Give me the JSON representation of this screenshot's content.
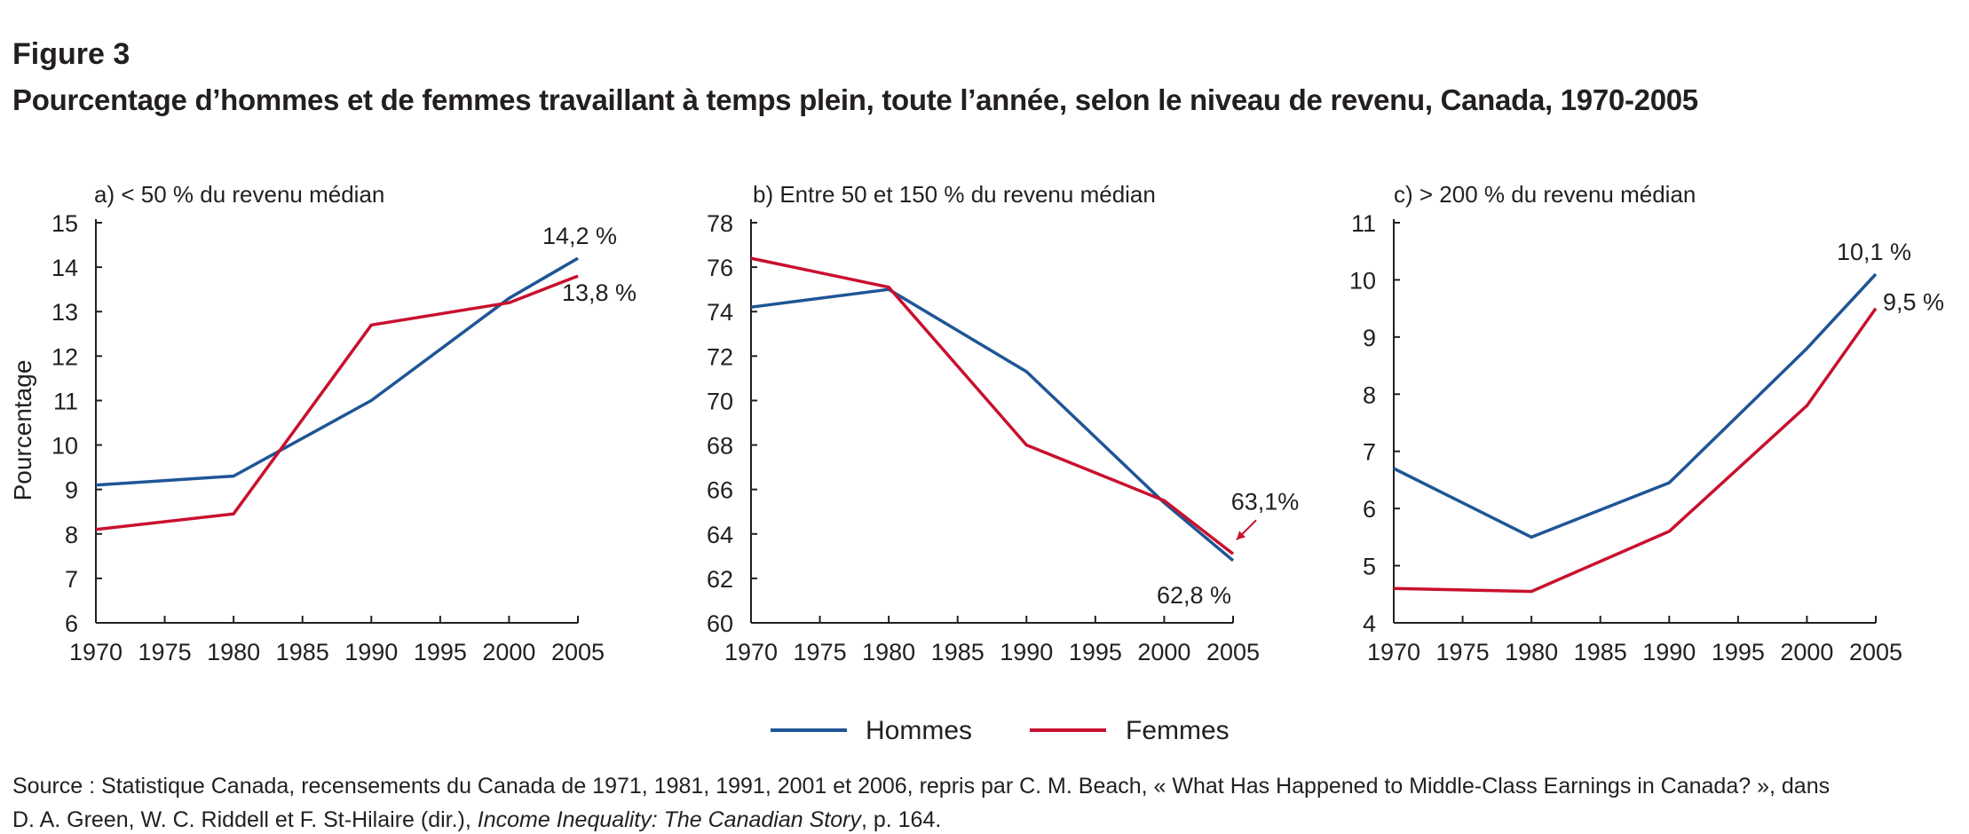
{
  "figure": {
    "label": "Figure 3",
    "title": "Pourcentage d’hommes et de femmes travaillant à temps plein, toute l’année, selon le niveau de revenu, Canada, 1970-2005",
    "ylabel": "Pourcentage"
  },
  "legend": [
    {
      "name": "Hommes",
      "color": "#1f5596"
    },
    {
      "name": "Femmes",
      "color": "#c8102e"
    }
  ],
  "source": {
    "line1": "Source : Statistique Canada, recensements du Canada de 1971, 1981, 1991, 2001 et 2006, repris par C. M. Beach, « What Has Happened to Middle-Class Earnings in Canada? », dans",
    "line2_before": "D. A. Green, W. C. Riddell et F. St-Hilaire (dir.), ",
    "line2_italic": "Income Inequality: The Canadian Story",
    "line2_after": ", p. 164."
  },
  "chart_data": [
    {
      "type": "line",
      "title": "a) < 50 % du revenu médian",
      "xlabel": "",
      "ylabel": "Pourcentage",
      "x": [
        1970,
        1980,
        1990,
        2000,
        2005
      ],
      "xticks": [
        1970,
        1975,
        1980,
        1985,
        1990,
        1995,
        2000,
        2005
      ],
      "yticks": [
        6,
        7,
        8,
        9,
        10,
        11,
        12,
        13,
        14,
        15
      ],
      "ylim": [
        6,
        15
      ],
      "series": [
        {
          "name": "Hommes",
          "color": "#1f5596",
          "values": [
            9.1,
            9.3,
            11.0,
            13.3,
            14.2
          ]
        },
        {
          "name": "Femmes",
          "color": "#c8102e",
          "values": [
            8.1,
            8.45,
            12.7,
            13.2,
            13.8
          ]
        }
      ],
      "annotations": [
        {
          "text": "14,2 %",
          "series": "Hommes"
        },
        {
          "text": "13,8 %",
          "series": "Femmes"
        }
      ]
    },
    {
      "type": "line",
      "title": "b) Entre 50 et 150 % du revenu médian",
      "xlabel": "",
      "ylabel": "",
      "x": [
        1970,
        1980,
        1990,
        2000,
        2005
      ],
      "xticks": [
        1970,
        1975,
        1980,
        1985,
        1990,
        1995,
        2000,
        2005
      ],
      "yticks": [
        60,
        62,
        64,
        66,
        68,
        70,
        72,
        74,
        76,
        78
      ],
      "ylim": [
        60,
        78
      ],
      "series": [
        {
          "name": "Hommes",
          "color": "#1f5596",
          "values": [
            74.2,
            75.0,
            71.3,
            65.4,
            62.8
          ]
        },
        {
          "name": "Femmes",
          "color": "#c8102e",
          "values": [
            76.4,
            75.1,
            68.0,
            65.5,
            63.1
          ]
        }
      ],
      "annotations": [
        {
          "text": "63,1%",
          "series": "Femmes"
        },
        {
          "text": "62,8 %",
          "series": "Hommes"
        }
      ]
    },
    {
      "type": "line",
      "title": "c) > 200 % du revenu médian",
      "xlabel": "",
      "ylabel": "",
      "x": [
        1970,
        1980,
        1990,
        2000,
        2005
      ],
      "xticks": [
        1970,
        1975,
        1980,
        1985,
        1990,
        1995,
        2000,
        2005
      ],
      "yticks": [
        4,
        5,
        6,
        7,
        8,
        9,
        10,
        11
      ],
      "ylim": [
        4,
        11
      ],
      "series": [
        {
          "name": "Hommes",
          "color": "#1f5596",
          "values": [
            6.7,
            5.5,
            6.45,
            8.8,
            10.1
          ]
        },
        {
          "name": "Femmes",
          "color": "#c8102e",
          "values": [
            4.6,
            4.55,
            5.6,
            7.8,
            9.5
          ]
        }
      ],
      "annotations": [
        {
          "text": "10,1 %",
          "series": "Hommes"
        },
        {
          "text": "9,5 %",
          "series": "Femmes"
        }
      ]
    }
  ]
}
